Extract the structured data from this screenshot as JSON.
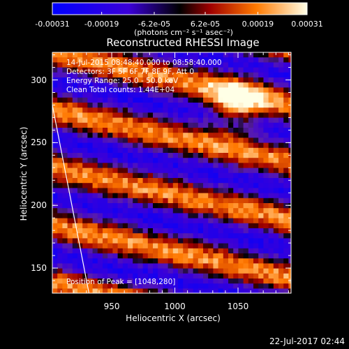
{
  "chart_data": {
    "type": "heatmap",
    "title": "Reconstructed RHESSI Image",
    "xlabel": "Heliocentric X (arcsec)",
    "ylabel": "Heliocentric Y (arcsec)",
    "x_range": [
      903,
      1092
    ],
    "y_range": [
      130,
      322
    ],
    "x_ticks": [
      "950",
      "1000",
      "1050"
    ],
    "y_ticks": [
      "150",
      "200",
      "250",
      "300"
    ],
    "colorbar": {
      "ticks": [
        "-0.00031",
        "-0.00019",
        "-6.2e-05",
        "6.2e-05",
        "0.00019",
        "0.00031"
      ],
      "range": [
        -0.00031,
        0.00031
      ],
      "unit": "(photons cm⁻² s⁻¹ asec⁻²)"
    },
    "annotations": {
      "time": "14-Jul-2015 08:48:40.000 to 08:58:40.000",
      "detectors": "Detectors: 3F 5F 6F 7F 8F 9F, Att 0",
      "energy": "Energy Range: 25.0 - 50.0 keV",
      "method": "Clean      Total counts: 1.44E+04",
      "peak": "Position of Peak = [1048,280]"
    },
    "peak_position": [
      1048,
      280
    ],
    "limb_line": [
      [
        903,
        280
      ],
      [
        932,
        130
      ]
    ]
  },
  "footer": {
    "date": "22-Jul-2017 02:44"
  }
}
